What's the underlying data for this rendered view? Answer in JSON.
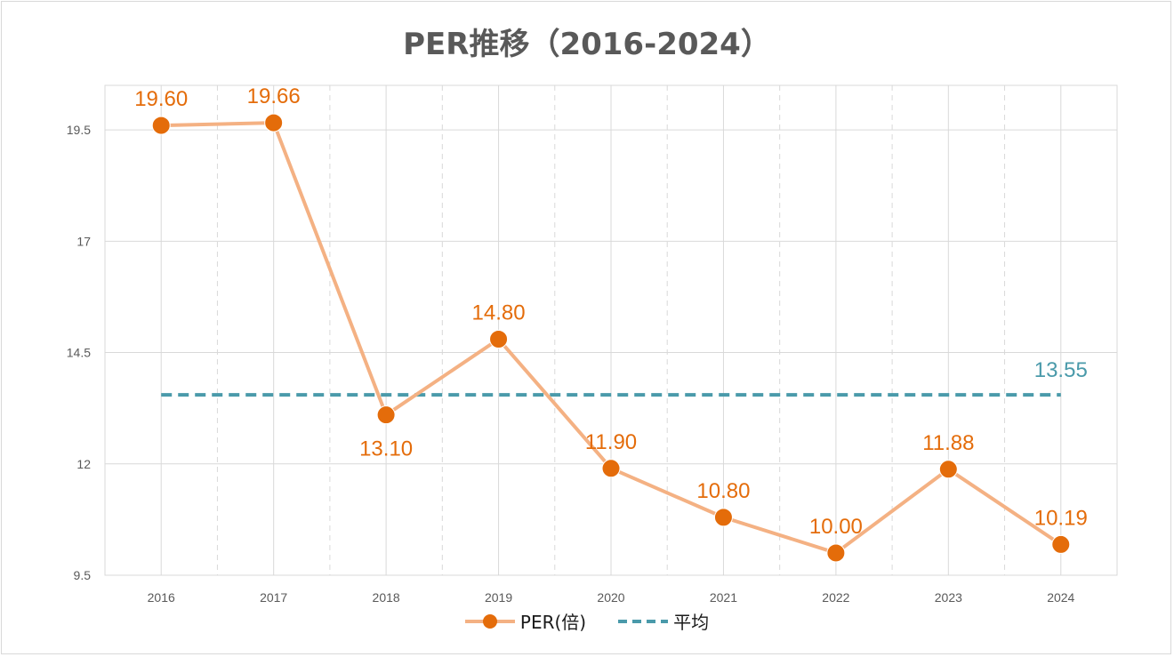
{
  "colors": {
    "series_line": "#f4b183",
    "marker": "#e46c0a",
    "label": "#e46c0a",
    "average": "#4a9aaa",
    "grid": "#d9d9d9",
    "axis_text": "#595959"
  },
  "chart_data": {
    "type": "line",
    "title": "PER推移（2016-2024）",
    "xlabel": "",
    "ylabel": "",
    "categories": [
      "2016",
      "2017",
      "2018",
      "2019",
      "2020",
      "2021",
      "2022",
      "2023",
      "2024"
    ],
    "series": [
      {
        "name": "PER(倍)",
        "values": [
          19.6,
          19.66,
          13.1,
          14.8,
          11.9,
          10.8,
          10.0,
          11.88,
          10.19
        ],
        "labels": [
          "19.60",
          "19.66",
          "13.10",
          "14.80",
          "11.90",
          "10.80",
          "10.00",
          "11.88",
          "10.19"
        ],
        "label_positions": [
          "above",
          "above",
          "below",
          "above",
          "above",
          "above",
          "above",
          "above",
          "above"
        ]
      },
      {
        "name": "平均",
        "values": [
          13.55,
          13.55,
          13.55,
          13.55,
          13.55,
          13.55,
          13.55,
          13.55,
          13.55
        ],
        "label": "13.55",
        "style": "dashed"
      }
    ],
    "yticks": [
      "9.5",
      "12",
      "14.5",
      "17",
      "19.5"
    ],
    "ytick_values": [
      9.5,
      12,
      14.5,
      17,
      19.5
    ],
    "ylim": [
      9.5,
      20.5
    ],
    "grid": true,
    "legend_position": "bottom"
  }
}
